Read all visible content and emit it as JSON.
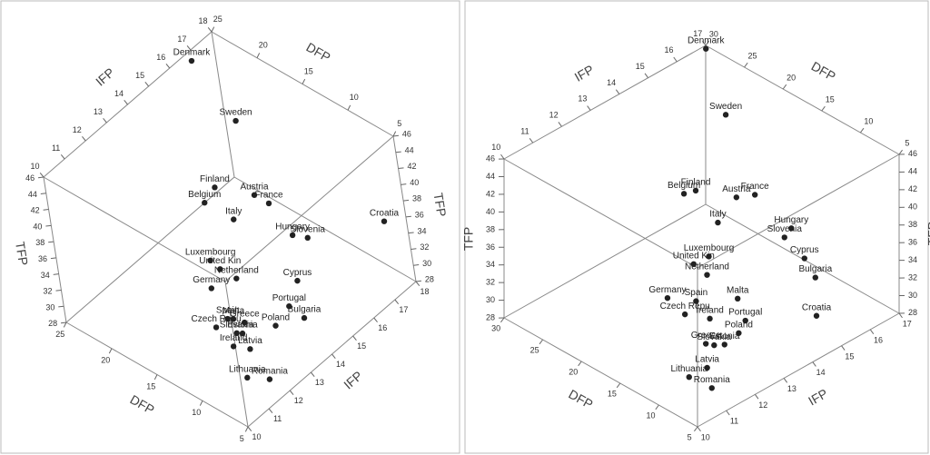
{
  "chart_data": [
    {
      "type": "scatter3d",
      "xlabel": "DFP",
      "ylabel": "IFP",
      "zlabel": "TFP",
      "xlim": [
        5,
        25
      ],
      "xticks": [
        5,
        10,
        15,
        20,
        25
      ],
      "ylim": [
        10,
        18
      ],
      "yticks": [
        10,
        11,
        12,
        13,
        14,
        15,
        16,
        17,
        18
      ],
      "zlim": [
        28,
        46
      ],
      "zticks": [
        28,
        30,
        32,
        34,
        36,
        38,
        40,
        42,
        44,
        46
      ],
      "color": "#222222",
      "labels": [
        "Denmark",
        "Sweden",
        "Finland",
        "Belgium",
        "Austria",
        "France",
        "Italy",
        "Hungary",
        "Slovenia",
        "Croatia",
        "Luxembourg",
        "United Kin",
        "Netherland",
        "Germany",
        "Cyprus",
        "Portugal",
        "Bulgaria",
        "Poland",
        "Spain",
        "Czech Repu",
        "Malta",
        "Greece",
        "Slovakia",
        "Estonia",
        "Ireland",
        "Latvia",
        "Lithuania",
        "Romania"
      ],
      "x": [
        24.8,
        22.9,
        19.2,
        18.7,
        16.0,
        14.4,
        15.5,
        10.4,
        9.2,
        5.4,
        13.9,
        12.6,
        10.8,
        11.7,
        10.1,
        8.7,
        6.8,
        8.1,
        8.3,
        8.4,
        7.9,
        6.9,
        6.6,
        6.2,
        5.8,
        7.3,
        5.3,
        5.8
      ],
      "y": [
        16.9,
        17.7,
        15.1,
        14.4,
        15.6,
        15.6,
        14.4,
        15.0,
        15.2,
        17.2,
        12.6,
        12.5,
        12.5,
        11.7,
        14.8,
        13.8,
        13.7,
        12.9,
        11.0,
        10.5,
        11.1,
        11.2,
        10.7,
        10.8,
        10.2,
        11.4,
        10.4,
        11.5
      ],
      "z": [
        45,
        37,
        37,
        37,
        37,
        37,
        37,
        37,
        37,
        37,
        37,
        37,
        37,
        37,
        32,
        32,
        32,
        32,
        37,
        37,
        37,
        37,
        37,
        37,
        37,
        33,
        33,
        30
      ]
    },
    {
      "type": "scatter3d",
      "xlabel": "DFP",
      "ylabel": "IFP",
      "zlabel": "TFP",
      "xlim": [
        5,
        30
      ],
      "xticks": [
        5,
        10,
        15,
        20,
        25,
        30
      ],
      "ylim": [
        10,
        17
      ],
      "yticks": [
        10,
        11,
        12,
        13,
        14,
        15,
        16,
        17
      ],
      "zlim": [
        28,
        46
      ],
      "zticks": [
        28,
        30,
        32,
        34,
        36,
        38,
        40,
        42,
        44,
        46
      ],
      "color": "#222222",
      "labels": [
        "Denmark",
        "Sweden",
        "Finland",
        "Belgium",
        "Austria",
        "France",
        "Italy",
        "Hungary",
        "Slovenia",
        "Cyprus",
        "Bulgaria",
        "Croatia",
        "Luxembourg",
        "United Kin",
        "Netherland",
        "Germany",
        "Spain",
        "Czech Repu",
        "Malta",
        "Ireland",
        "Portugal",
        "Poland",
        "Greece",
        "Slovakia",
        "Estonia",
        "Latvia",
        "Lithuania",
        "Romania"
      ],
      "x": [
        29.6,
        24.8,
        23.1,
        23.5,
        19.7,
        18.8,
        18.0,
        12.6,
        12.0,
        8.3,
        5.4,
        6.0,
        14.7,
        14.8,
        12.7,
        12.6,
        10.4,
        9.6,
        8.0,
        7.5,
        7.0,
        6.0,
        6.9,
        6.2,
        5.6,
        7.1,
        7.2,
        6.5
      ],
      "y": [
        16.9,
        16.3,
        14.8,
        14.5,
        15.3,
        15.7,
        14.2,
        15.3,
        14.9,
        14.6,
        14.2,
        14.4,
        13.0,
        12.5,
        12.4,
        11.0,
        11.4,
        10.8,
        12.2,
        11.1,
        12.2,
        11.7,
        10.8,
        10.9,
        11.1,
        10.9,
        10.3,
        10.9
      ],
      "z": [
        46,
        42,
        37,
        37,
        37,
        37,
        37,
        37,
        37,
        37,
        37,
        32,
        37,
        37,
        37,
        37,
        37,
        37,
        37,
        37,
        35,
        35,
        35,
        35,
        35,
        32,
        32,
        30
      ]
    }
  ]
}
